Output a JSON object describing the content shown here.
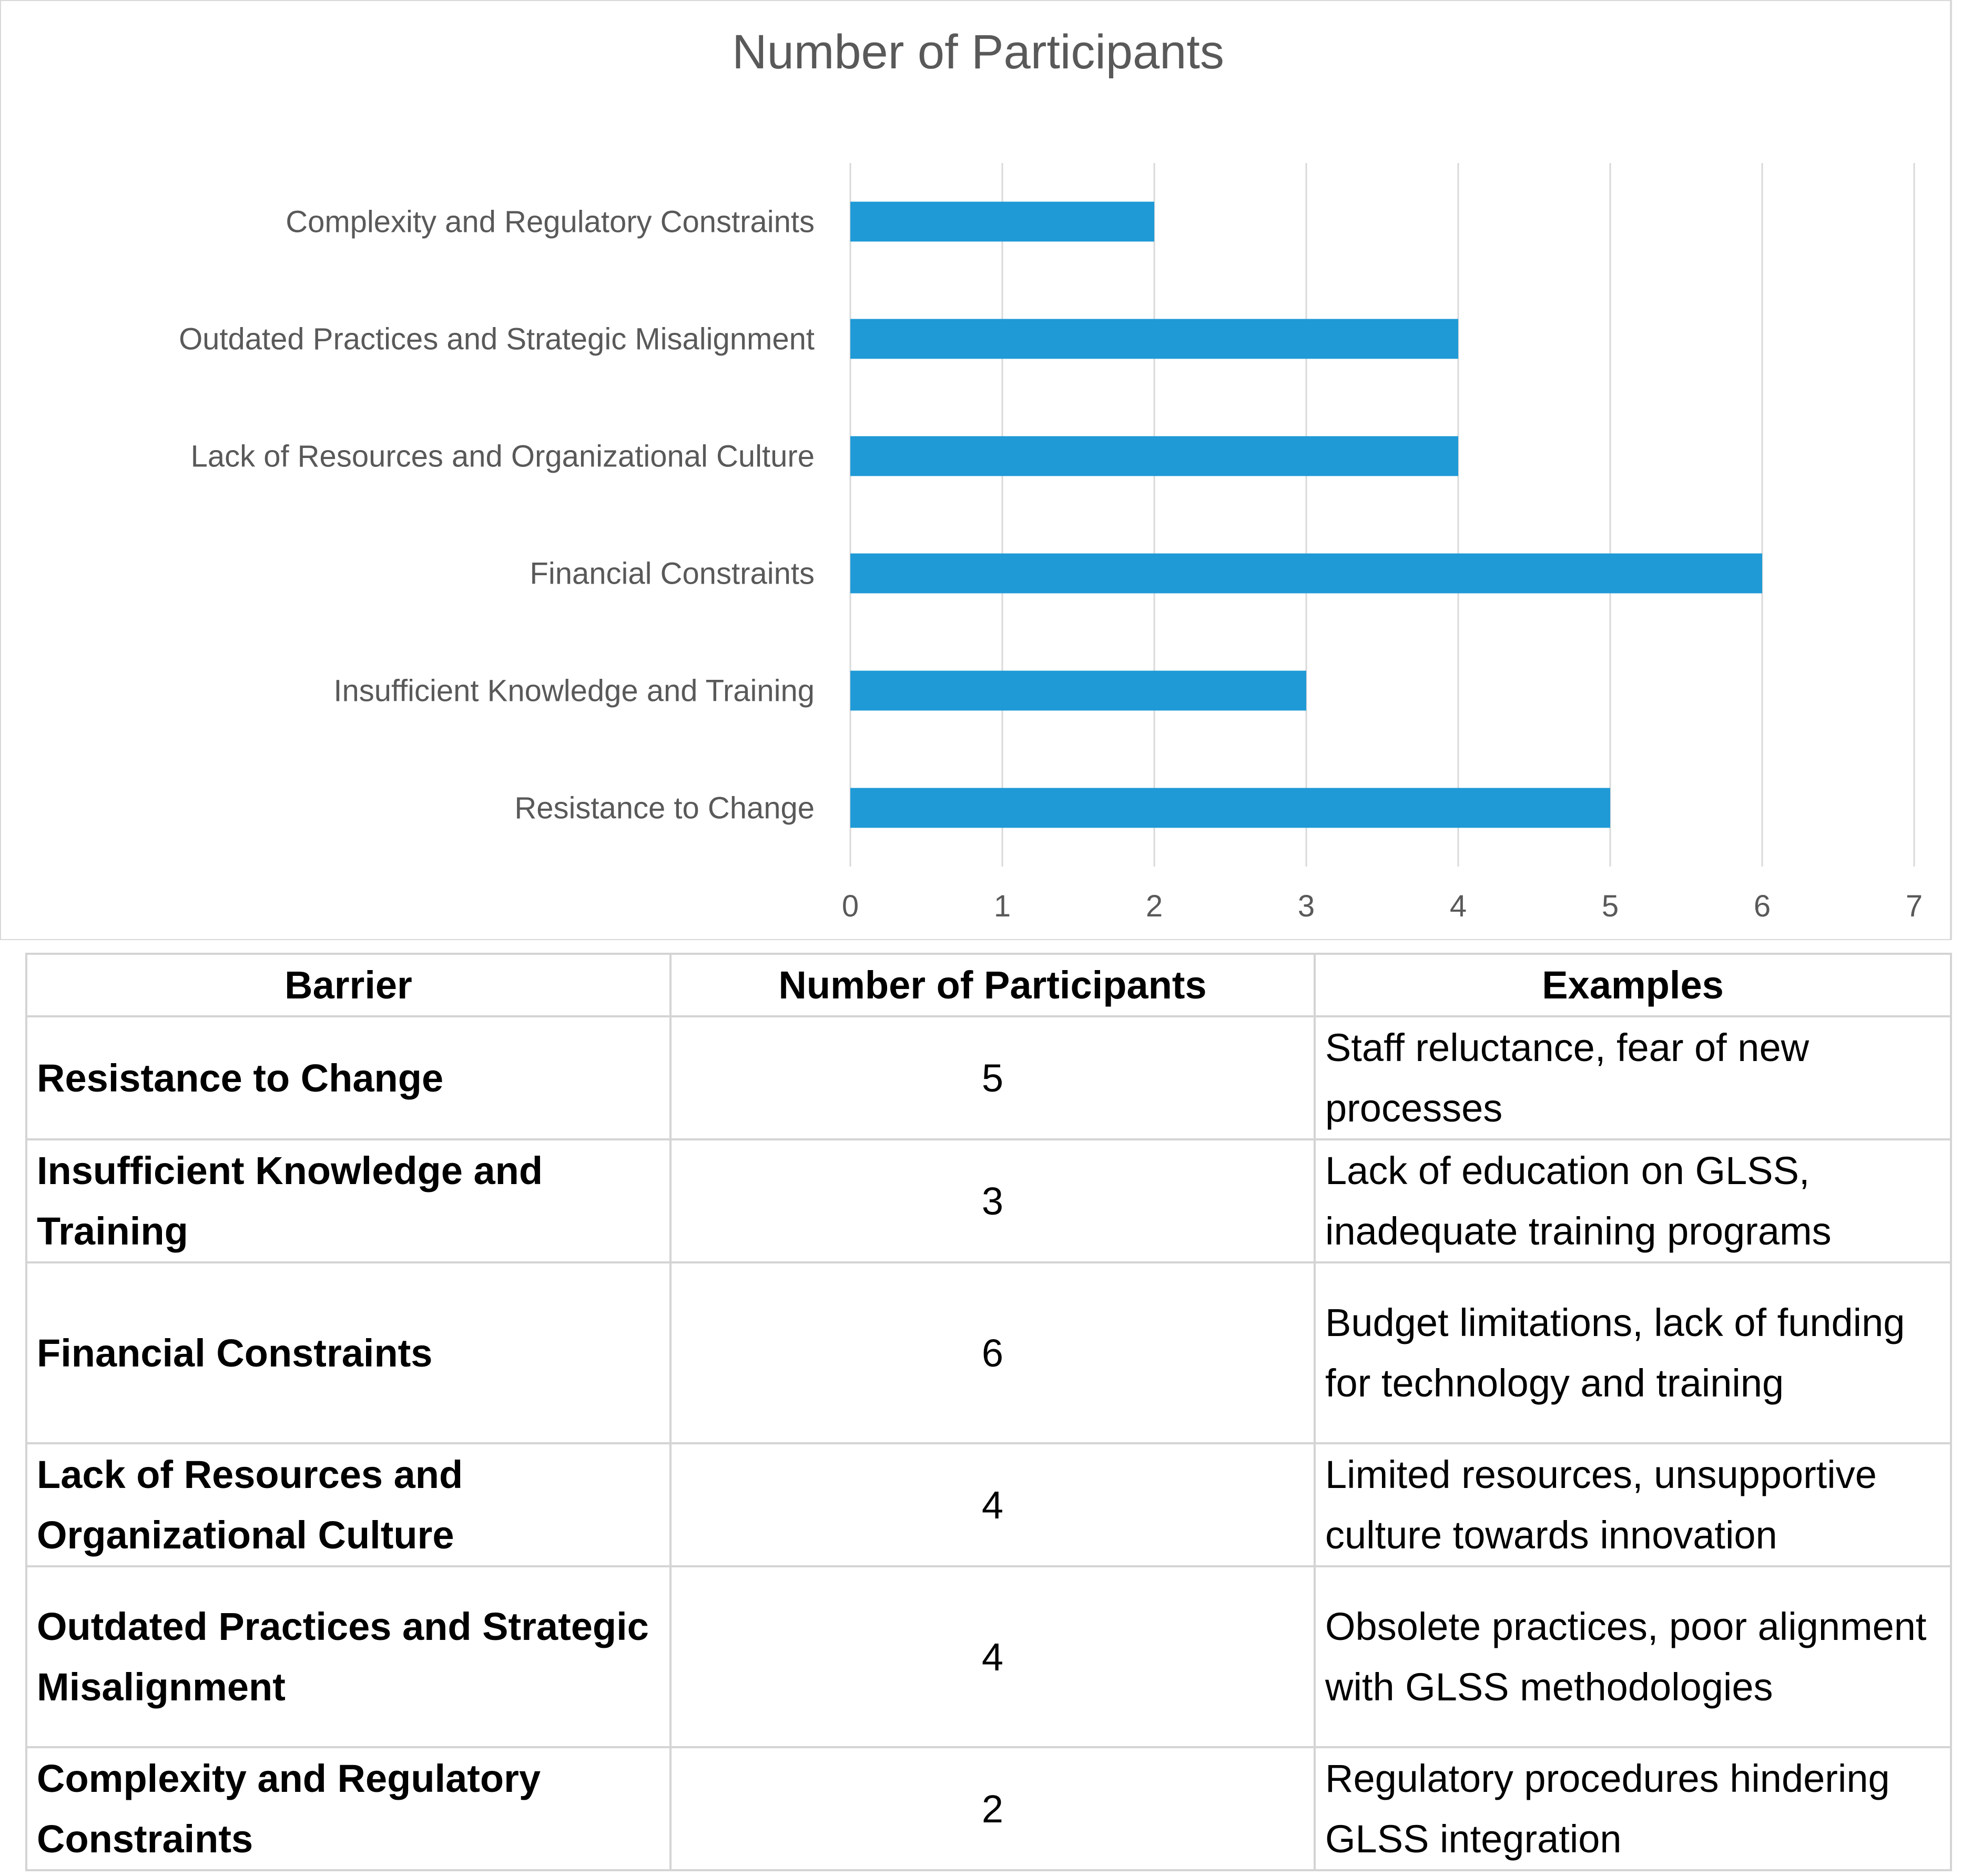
{
  "chart_data": {
    "type": "bar",
    "orientation": "horizontal",
    "title": "Number of Participants",
    "categories": [
      "Complexity and  Regulatory Constraints",
      "Outdated Practices and  Strategic Misalignment",
      "Lack of Resources and  Organizational Culture",
      "Financial Constraints",
      "Insufficient Knowledge and Training",
      "Resistance to Change"
    ],
    "values": [
      2,
      4,
      4,
      6,
      3,
      5
    ],
    "xlim": [
      0,
      7
    ],
    "xticks": [
      "0",
      "1",
      "2",
      "3",
      "4",
      "5",
      "6",
      "7"
    ],
    "grid": "vertical",
    "bar_color": "#1f9ad6"
  },
  "table": {
    "headers": [
      "Barrier",
      "Number of Participants",
      "Examples"
    ],
    "rows": [
      {
        "barrier": "Resistance to Change",
        "count": "5",
        "examples": "Staff reluctance, fear of new processes"
      },
      {
        "barrier": "Insufficient Knowledge and Training",
        "count": "3",
        "examples": "Lack of education on GLSS, inadequate training programs"
      },
      {
        "barrier": "Financial Constraints",
        "count": "6",
        "examples": "Budget limitations, lack of funding for technology and training"
      },
      {
        "barrier": "Lack of Resources and Organizational Culture",
        "count": "4",
        "examples": "Limited resources, unsupportive culture towards innovation"
      },
      {
        "barrier": "Outdated Practices and  Strategic Misalignment",
        "count": "4",
        "examples": "Obsolete practices, poor alignment with GLSS methodologies"
      },
      {
        "barrier": "Complexity and  Regulatory Constraints",
        "count": "2",
        "examples": "Regulatory procedures hindering GLSS integration"
      }
    ]
  }
}
